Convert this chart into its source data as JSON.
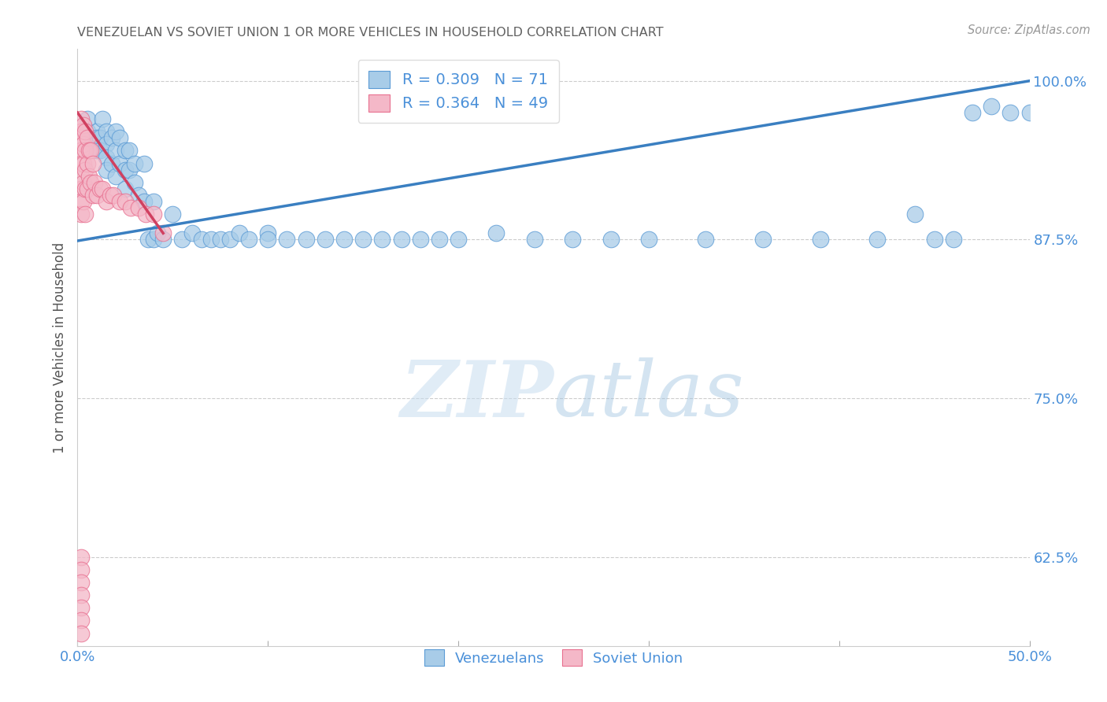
{
  "title": "VENEZUELAN VS SOVIET UNION 1 OR MORE VEHICLES IN HOUSEHOLD CORRELATION CHART",
  "source": "Source: ZipAtlas.com",
  "ylabel": "1 or more Vehicles in Household",
  "xmin": 0.0,
  "xmax": 0.5,
  "ymin": 0.555,
  "ymax": 1.025,
  "yticks": [
    0.625,
    0.75,
    0.875,
    1.0
  ],
  "ytick_labels": [
    "62.5%",
    "75.0%",
    "87.5%",
    "100.0%"
  ],
  "xticks": [
    0.0,
    0.1,
    0.2,
    0.3,
    0.4,
    0.5
  ],
  "xtick_labels": [
    "0.0%",
    "",
    "",
    "",
    "",
    "50.0%"
  ],
  "watermark_zip": "ZIP",
  "watermark_atlas": "atlas",
  "legend_blue_R": "R = 0.309",
  "legend_blue_N": "N = 71",
  "legend_pink_R": "R = 0.364",
  "legend_pink_N": "N = 49",
  "blue_fill": "#A8CCE8",
  "blue_edge": "#5B9BD5",
  "pink_fill": "#F4B8C8",
  "pink_edge": "#E87090",
  "blue_line_color": "#3A7FC1",
  "pink_line_color": "#D04060",
  "title_color": "#606060",
  "axis_label_color": "#555555",
  "tick_label_color": "#4A90D9",
  "source_color": "#999999",
  "blue_line_x0": 0.0,
  "blue_line_y0": 0.874,
  "blue_line_x1": 0.5,
  "blue_line_y1": 1.0,
  "pink_line_x0": 0.0,
  "pink_line_y0": 0.975,
  "pink_line_x1": 0.045,
  "pink_line_y1": 0.88,
  "venezuelan_x": [
    0.005,
    0.005,
    0.01,
    0.01,
    0.01,
    0.012,
    0.012,
    0.013,
    0.015,
    0.015,
    0.015,
    0.015,
    0.018,
    0.018,
    0.02,
    0.02,
    0.02,
    0.022,
    0.022,
    0.025,
    0.025,
    0.025,
    0.027,
    0.027,
    0.03,
    0.03,
    0.032,
    0.035,
    0.035,
    0.037,
    0.04,
    0.04,
    0.042,
    0.045,
    0.05,
    0.055,
    0.06,
    0.065,
    0.07,
    0.075,
    0.08,
    0.085,
    0.09,
    0.1,
    0.1,
    0.11,
    0.12,
    0.13,
    0.14,
    0.15,
    0.16,
    0.17,
    0.18,
    0.19,
    0.2,
    0.22,
    0.24,
    0.26,
    0.28,
    0.3,
    0.33,
    0.36,
    0.39,
    0.42,
    0.44,
    0.45,
    0.46,
    0.47,
    0.48,
    0.49,
    0.5
  ],
  "venezuelan_y": [
    0.97,
    0.96,
    0.96,
    0.955,
    0.945,
    0.955,
    0.945,
    0.97,
    0.96,
    0.95,
    0.94,
    0.93,
    0.955,
    0.935,
    0.96,
    0.945,
    0.925,
    0.955,
    0.935,
    0.945,
    0.93,
    0.915,
    0.945,
    0.93,
    0.935,
    0.92,
    0.91,
    0.935,
    0.905,
    0.875,
    0.905,
    0.875,
    0.88,
    0.875,
    0.895,
    0.875,
    0.88,
    0.875,
    0.875,
    0.875,
    0.875,
    0.88,
    0.875,
    0.88,
    0.875,
    0.875,
    0.875,
    0.875,
    0.875,
    0.875,
    0.875,
    0.875,
    0.875,
    0.875,
    0.875,
    0.88,
    0.875,
    0.875,
    0.875,
    0.875,
    0.875,
    0.875,
    0.875,
    0.875,
    0.895,
    0.875,
    0.875,
    0.975,
    0.98,
    0.975,
    0.975
  ],
  "soviet_x": [
    0.002,
    0.002,
    0.002,
    0.002,
    0.002,
    0.002,
    0.002,
    0.002,
    0.002,
    0.003,
    0.003,
    0.003,
    0.003,
    0.003,
    0.004,
    0.004,
    0.004,
    0.004,
    0.004,
    0.005,
    0.005,
    0.005,
    0.006,
    0.006,
    0.007,
    0.007,
    0.008,
    0.008,
    0.009,
    0.01,
    0.012,
    0.013,
    0.015,
    0.017,
    0.019,
    0.022,
    0.025,
    0.028,
    0.032,
    0.036,
    0.04,
    0.045,
    0.002,
    0.002,
    0.002,
    0.002,
    0.002,
    0.002,
    0.002
  ],
  "soviet_y": [
    0.97,
    0.96,
    0.955,
    0.945,
    0.935,
    0.925,
    0.915,
    0.905,
    0.895,
    0.965,
    0.95,
    0.935,
    0.92,
    0.905,
    0.96,
    0.945,
    0.93,
    0.915,
    0.895,
    0.955,
    0.935,
    0.915,
    0.945,
    0.925,
    0.945,
    0.92,
    0.935,
    0.91,
    0.92,
    0.91,
    0.915,
    0.915,
    0.905,
    0.91,
    0.91,
    0.905,
    0.905,
    0.9,
    0.9,
    0.895,
    0.895,
    0.88,
    0.625,
    0.615,
    0.605,
    0.595,
    0.585,
    0.575,
    0.565
  ]
}
